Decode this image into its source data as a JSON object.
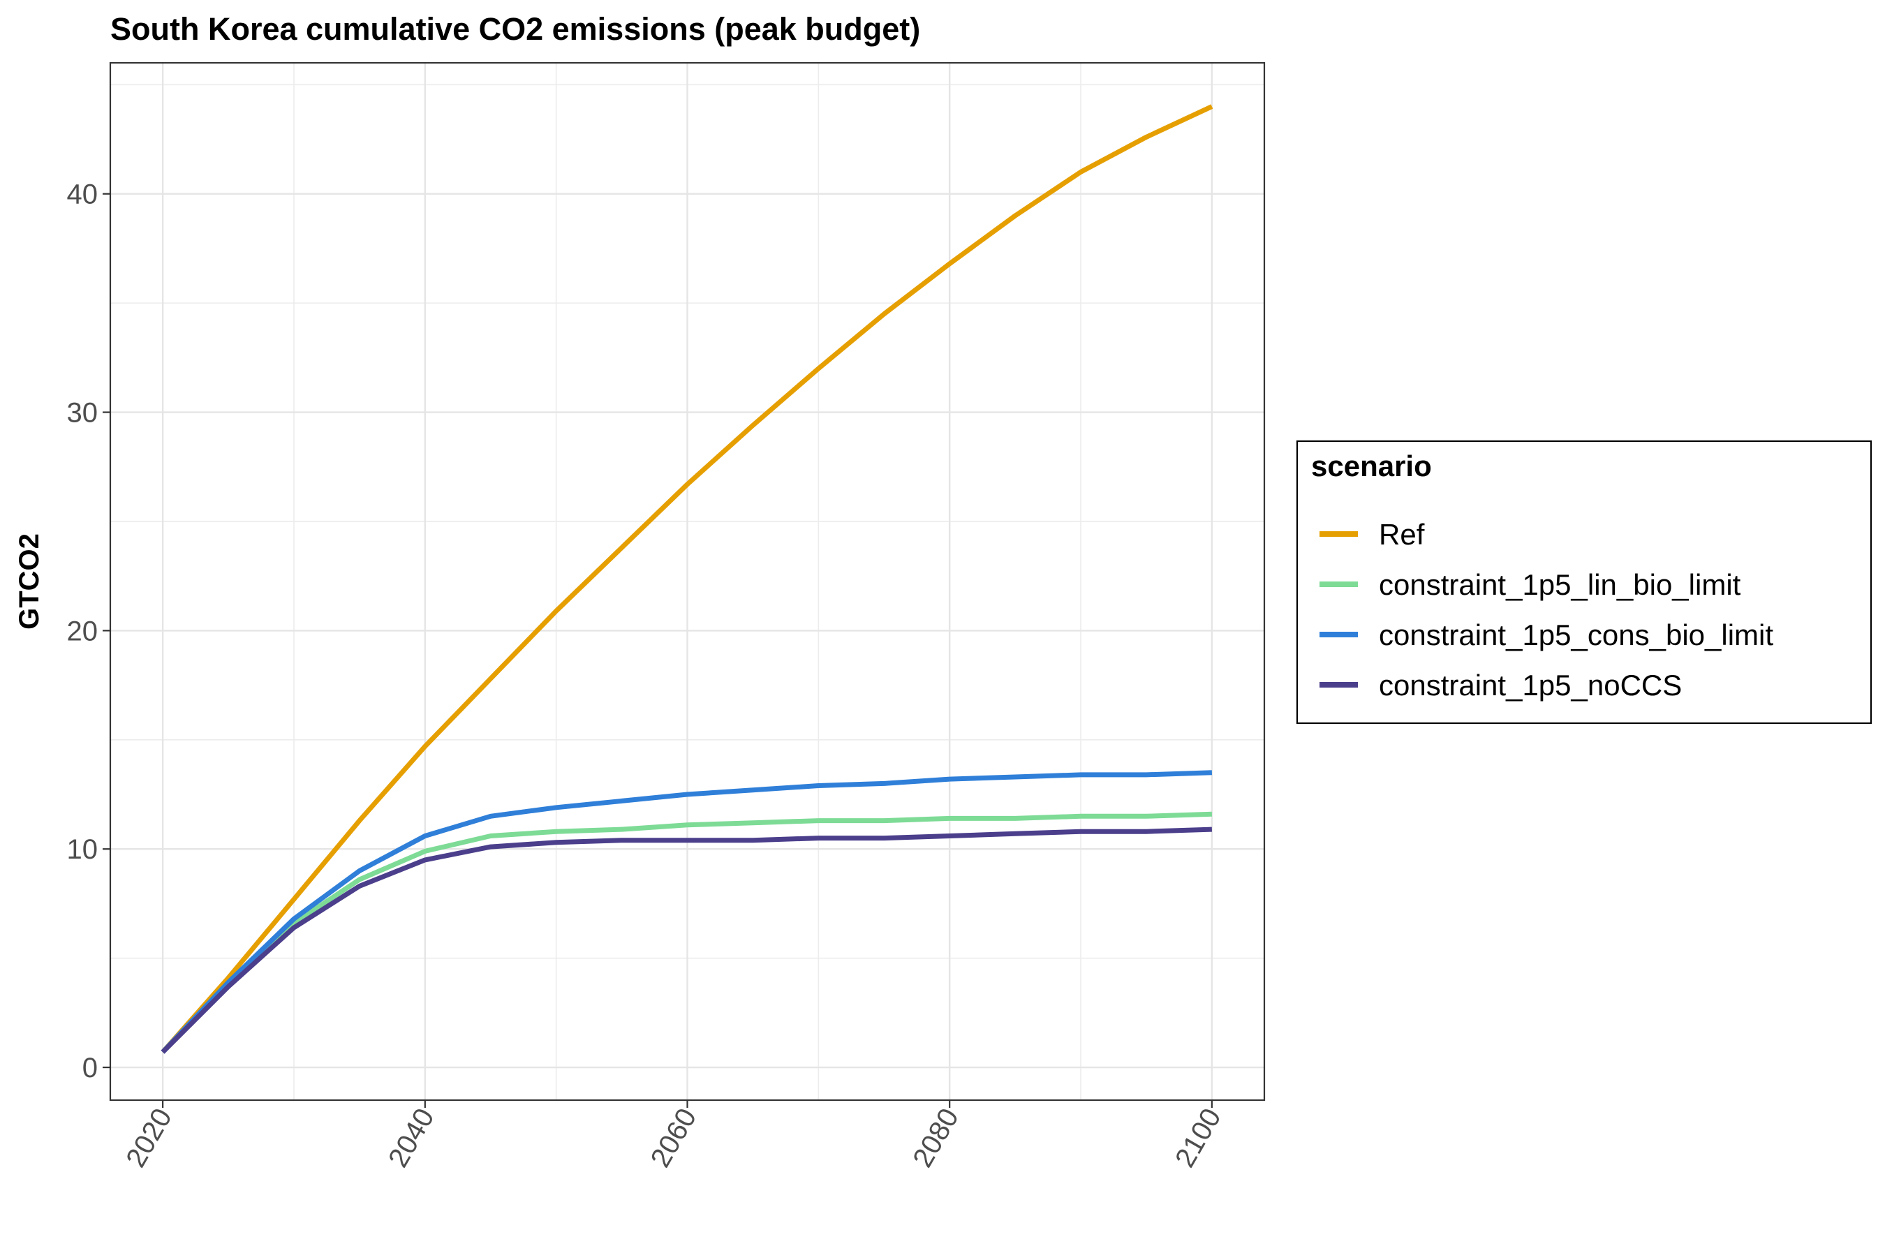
{
  "chart_data": {
    "type": "line",
    "title": "South Korea cumulative CO2 emissions (peak budget)",
    "xlabel": "",
    "ylabel": "GTCO2",
    "xlim": [
      2016,
      2104
    ],
    "ylim": [
      -1.5,
      46
    ],
    "x_ticks": [
      "2020",
      "2040",
      "2060",
      "2080",
      "2100"
    ],
    "y_ticks": [
      "0",
      "10",
      "20",
      "30",
      "40"
    ],
    "x_minor_ticks": [
      2030,
      2050,
      2070,
      2090
    ],
    "y_minor_ticks": [
      5,
      15,
      25,
      35,
      45
    ],
    "grid": true,
    "legend": {
      "title": "scenario",
      "position": "right"
    },
    "x": [
      2020,
      2025,
      2030,
      2035,
      2040,
      2045,
      2050,
      2055,
      2060,
      2065,
      2070,
      2075,
      2080,
      2085,
      2090,
      2095,
      2100
    ],
    "series": [
      {
        "name": "Ref",
        "color": "#E69F00",
        "values": [
          0.7,
          4.1,
          7.7,
          11.3,
          14.7,
          17.8,
          20.9,
          23.8,
          26.7,
          29.4,
          32.0,
          34.5,
          36.8,
          39.0,
          41.0,
          42.6,
          44.0
        ]
      },
      {
        "name": "constraint_1p5_lin_bio_limit",
        "color": "#7DDB96",
        "values": [
          0.7,
          3.8,
          6.6,
          8.6,
          9.9,
          10.6,
          10.8,
          10.9,
          11.1,
          11.2,
          11.3,
          11.3,
          11.4,
          11.4,
          11.5,
          11.5,
          11.6
        ]
      },
      {
        "name": "constraint_1p5_cons_bio_limit",
        "color": "#2F7FD9",
        "values": [
          0.7,
          3.9,
          6.8,
          9.0,
          10.6,
          11.5,
          11.9,
          12.2,
          12.5,
          12.7,
          12.9,
          13.0,
          13.2,
          13.3,
          13.4,
          13.4,
          13.5
        ]
      },
      {
        "name": "constraint_1p5_noCCS",
        "color": "#4B3F8C",
        "values": [
          0.7,
          3.7,
          6.4,
          8.3,
          9.5,
          10.1,
          10.3,
          10.4,
          10.4,
          10.4,
          10.5,
          10.5,
          10.6,
          10.7,
          10.8,
          10.8,
          10.9
        ]
      }
    ]
  }
}
